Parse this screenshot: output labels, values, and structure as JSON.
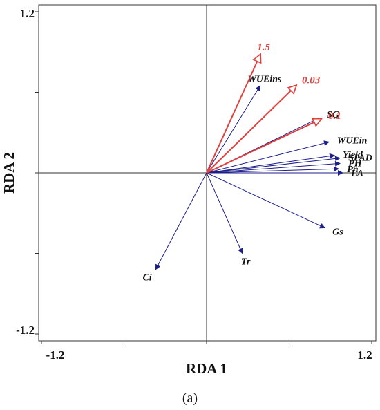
{
  "chart_data": {
    "type": "biplot",
    "xlabel": "RDA 1",
    "ylabel": "RDA 2",
    "xlim": [
      -1.2,
      1.2
    ],
    "ylim": [
      -1.2,
      1.2
    ],
    "x_tick_labels": [
      "-1.2",
      "1.2"
    ],
    "y_tick_labels": [
      "1.2",
      "-1.2"
    ],
    "caption": "(a)",
    "colors": {
      "response": "#1c1f8a",
      "explanatory": "#e0413e"
    },
    "response_vectors": [
      {
        "label": "WUEins",
        "x": 0.39,
        "y": 0.65
      },
      {
        "label": "SG",
        "x": 0.82,
        "y": 0.41
      },
      {
        "label": "WUEin",
        "x": 0.89,
        "y": 0.23
      },
      {
        "label": "Yield",
        "x": 0.93,
        "y": 0.13
      },
      {
        "label": "SPAD",
        "x": 0.97,
        "y": 0.11
      },
      {
        "label": "PH",
        "x": 0.97,
        "y": 0.07
      },
      {
        "label": "Pn",
        "x": 0.96,
        "y": 0.03
      },
      {
        "label": "LA",
        "x": 0.99,
        "y": 0.0
      },
      {
        "label": "Gs",
        "x": 0.86,
        "y": -0.41
      },
      {
        "label": "Tr",
        "x": 0.26,
        "y": -0.6
      },
      {
        "label": "Ci",
        "x": -0.37,
        "y": -0.72
      }
    ],
    "explanatory_vectors": [
      {
        "label": "1.5",
        "x": 0.39,
        "y": 0.88
      },
      {
        "label": "0.03",
        "x": 0.65,
        "y": 0.65
      },
      {
        "label": "0.1",
        "x": 0.83,
        "y": 0.4
      }
    ]
  }
}
